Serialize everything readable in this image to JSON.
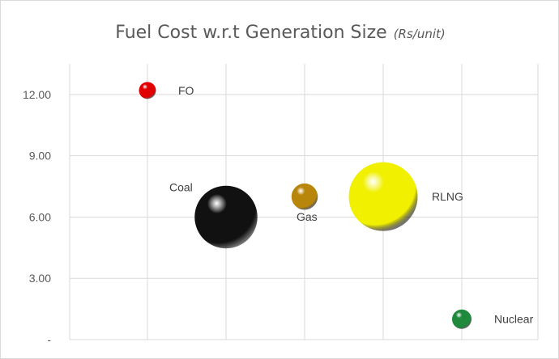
{
  "chart_data": {
    "type": "scatter",
    "title": "Fuel Cost w.r.t Generation Size",
    "title_unit": "(Rs/unit)",
    "xlabel": "",
    "ylabel": "",
    "xlim": [
      0,
      5
    ],
    "ylim": [
      0,
      13.5
    ],
    "y_ticks": [
      0,
      3,
      6,
      9,
      12
    ],
    "y_tick_labels": [
      "-",
      "3.00",
      "6.00",
      "9.00",
      "12.00"
    ],
    "grid": true,
    "legend": "none",
    "points": [
      {
        "label": "FO",
        "x": 1,
        "y": 12.2,
        "size": 0.42,
        "color": "#e00000"
      },
      {
        "label": "Coal",
        "x": 2,
        "y": 6.0,
        "size": 1.55,
        "color": "#111111"
      },
      {
        "label": "Gas",
        "x": 3,
        "y": 7.0,
        "size": 0.65,
        "color": "#b8860b"
      },
      {
        "label": "RLNG",
        "x": 4,
        "y": 7.0,
        "size": 1.7,
        "color": "#f0f000"
      },
      {
        "label": "Nuclear",
        "x": 5,
        "y": 1.0,
        "size": 0.48,
        "color": "#1f8a3c"
      }
    ]
  }
}
